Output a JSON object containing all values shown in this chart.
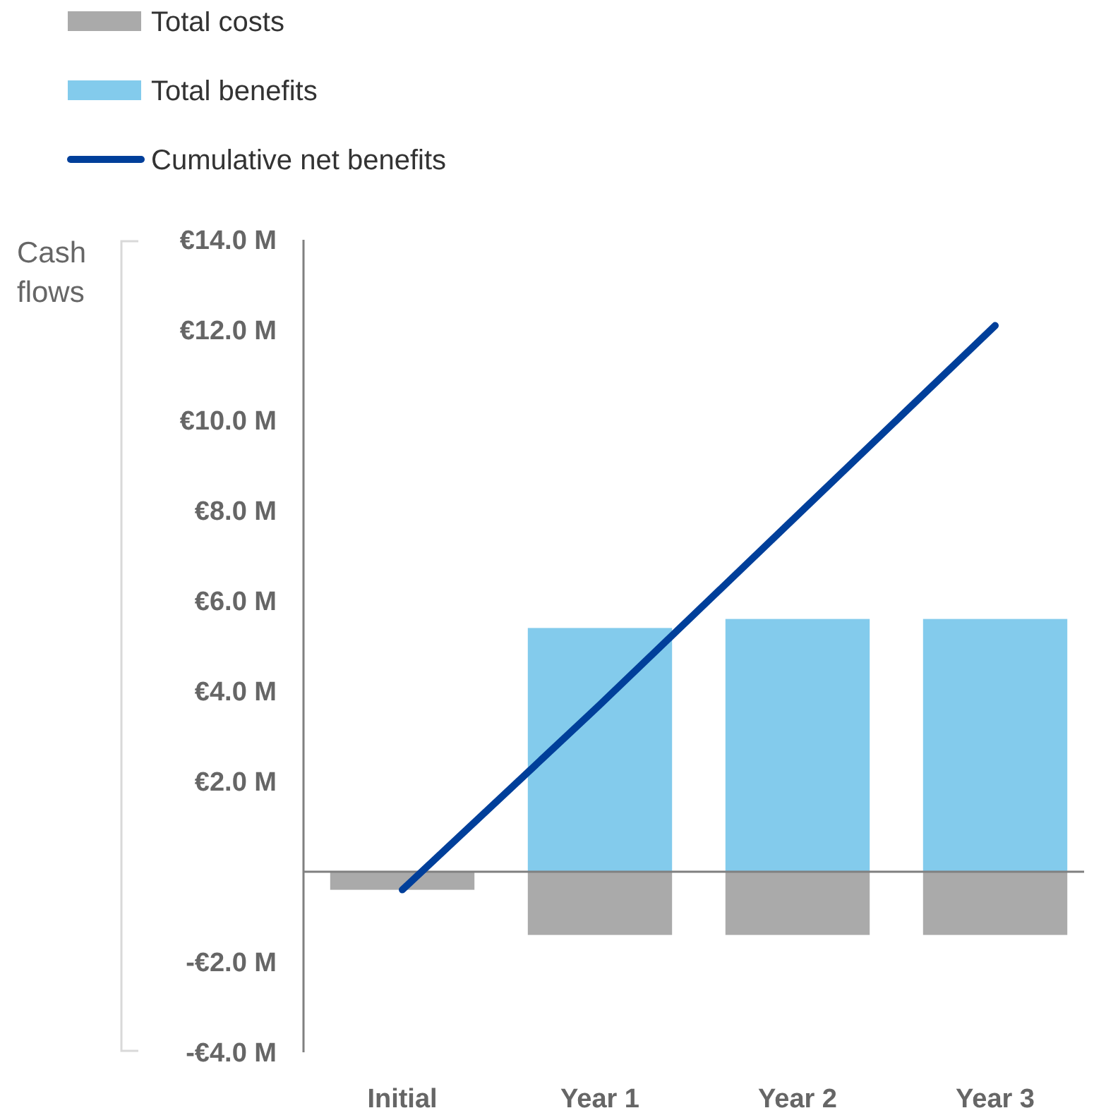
{
  "chart_data": {
    "type": "bar",
    "ylabel": "Cash flows",
    "categories": [
      "Initial",
      "Year 1",
      "Year 2",
      "Year 3"
    ],
    "stacked": true,
    "legend": "top left",
    "ylim": [
      -4,
      14
    ],
    "yticks": [
      {
        "value": -4,
        "label": "-€4.0 M"
      },
      {
        "value": -2,
        "label": "-€2.0 M"
      },
      {
        "value": 0,
        "label": null
      },
      {
        "value": 2,
        "label": "€2.0 M"
      },
      {
        "value": 4,
        "label": "€4.0 M"
      },
      {
        "value": 6,
        "label": "€6.0 M"
      },
      {
        "value": 8,
        "label": "€8.0 M"
      },
      {
        "value": 10,
        "label": "€10.0 M"
      },
      {
        "value": 12,
        "label": "€12.0 M"
      },
      {
        "value": 14,
        "label": "€14.0 M"
      }
    ],
    "series": [
      {
        "name": "Total costs",
        "color": "#aaaaaa",
        "values": [
          -0.4,
          -1.4,
          -1.4,
          -1.4
        ]
      },
      {
        "name": "Total benefits",
        "color": "#83cbec",
        "values": [
          null,
          5.4,
          5.6,
          5.6
        ]
      },
      {
        "name": "Cumulative net benefits",
        "type": "line",
        "color": "#003f9a",
        "values": [
          -0.4,
          3.7,
          7.9,
          12.1
        ]
      }
    ]
  }
}
